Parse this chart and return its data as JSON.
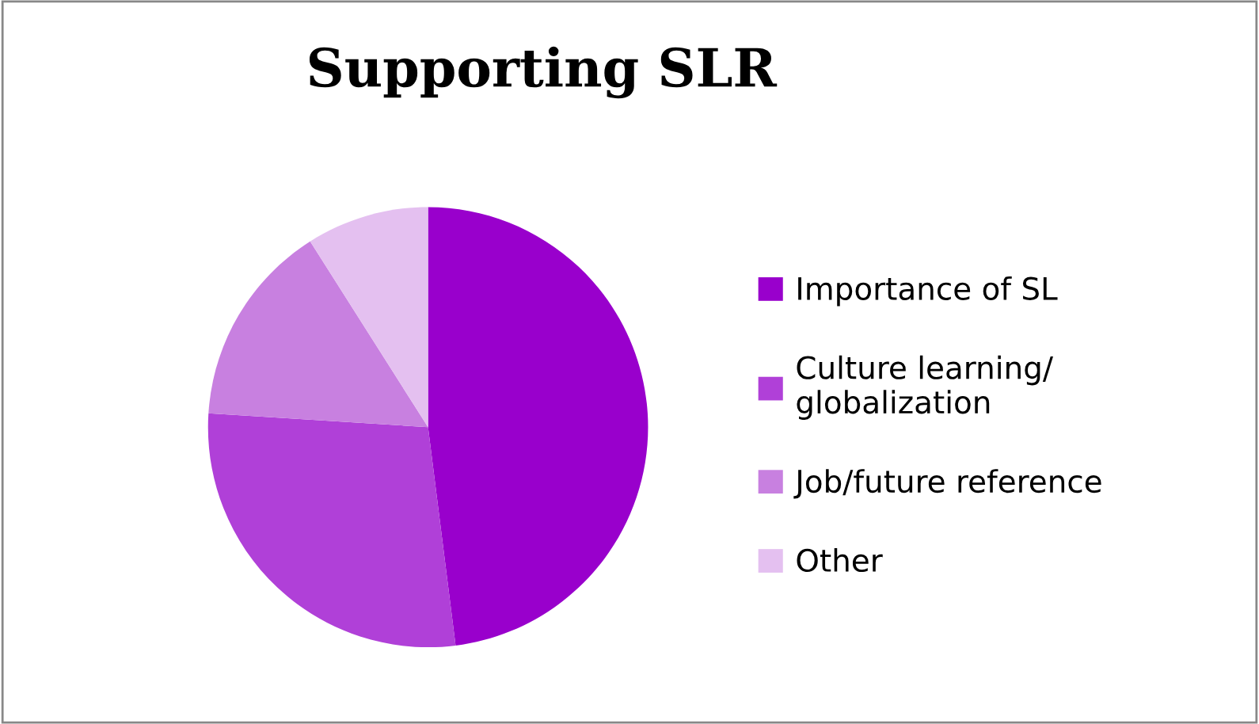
{
  "chart_data": {
    "type": "pie",
    "title": "Supporting SLR",
    "categories": [
      "Importance of SL",
      "Culture learning/\nglobalization",
      "Job/future reference",
      "Other"
    ],
    "values": [
      48,
      28,
      15,
      9
    ],
    "colors": [
      "#9900cc",
      "#b040d8",
      "#c880e0",
      "#e4c0f0"
    ],
    "legend": "right"
  }
}
